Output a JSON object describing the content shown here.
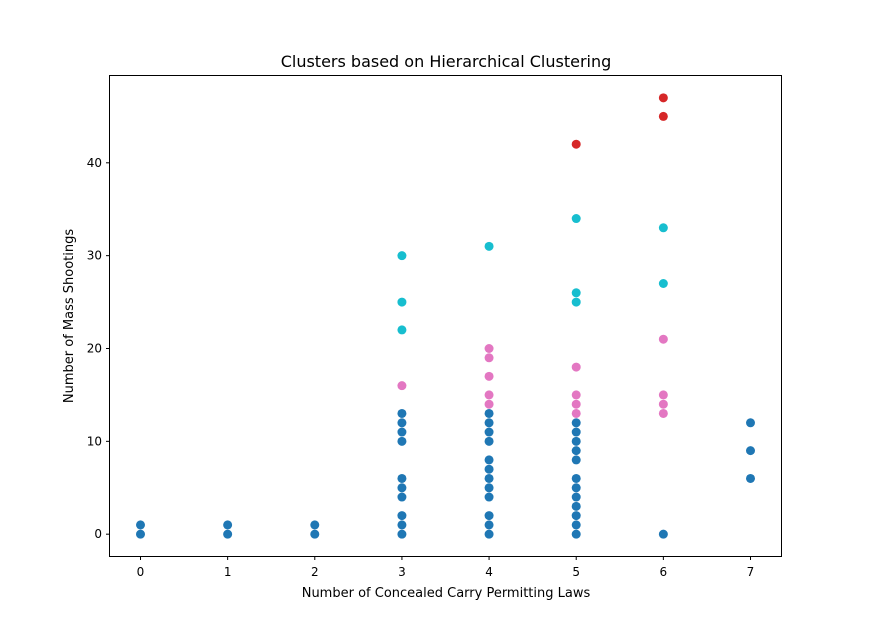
{
  "chart_data": {
    "type": "scatter",
    "title": "Clusters based on Hierarchical Clustering",
    "xlabel": "Number of Concealed Carry Permitting Laws",
    "ylabel": "Number of Mass Shootings",
    "xlim": [
      -0.35,
      7.35
    ],
    "ylim": [
      -2.35,
      49.35
    ],
    "xticks": [
      0,
      1,
      2,
      3,
      4,
      5,
      6,
      7
    ],
    "yticks": [
      0,
      10,
      20,
      30,
      40
    ],
    "grid": false,
    "legend": "none",
    "series": [
      {
        "color": "#1f77b4",
        "points": [
          [
            0,
            0
          ],
          [
            0,
            1
          ],
          [
            1,
            0
          ],
          [
            1,
            1
          ],
          [
            2,
            0
          ],
          [
            2,
            1
          ],
          [
            3,
            0
          ],
          [
            3,
            1
          ],
          [
            3,
            2
          ],
          [
            3,
            4
          ],
          [
            3,
            5
          ],
          [
            3,
            6
          ],
          [
            3,
            10
          ],
          [
            3,
            11
          ],
          [
            3,
            12
          ],
          [
            3,
            13
          ],
          [
            4,
            0
          ],
          [
            4,
            1
          ],
          [
            4,
            2
          ],
          [
            4,
            4
          ],
          [
            4,
            5
          ],
          [
            4,
            6
          ],
          [
            4,
            7
          ],
          [
            4,
            8
          ],
          [
            4,
            10
          ],
          [
            4,
            11
          ],
          [
            4,
            12
          ],
          [
            4,
            13
          ],
          [
            5,
            0
          ],
          [
            5,
            1
          ],
          [
            5,
            2
          ],
          [
            5,
            3
          ],
          [
            5,
            4
          ],
          [
            5,
            5
          ],
          [
            5,
            6
          ],
          [
            5,
            8
          ],
          [
            5,
            9
          ],
          [
            5,
            10
          ],
          [
            5,
            11
          ],
          [
            5,
            12
          ],
          [
            6,
            0
          ],
          [
            7,
            6
          ],
          [
            7,
            9
          ],
          [
            7,
            12
          ]
        ]
      },
      {
        "color": "#e377c2",
        "points": [
          [
            3,
            16
          ],
          [
            4,
            14
          ],
          [
            4,
            15
          ],
          [
            4,
            17
          ],
          [
            4,
            19
          ],
          [
            4,
            20
          ],
          [
            5,
            13
          ],
          [
            5,
            14
          ],
          [
            5,
            15
          ],
          [
            5,
            18
          ],
          [
            6,
            13
          ],
          [
            6,
            14
          ],
          [
            6,
            15
          ],
          [
            6,
            21
          ]
        ]
      },
      {
        "color": "#17becf",
        "points": [
          [
            3,
            22
          ],
          [
            3,
            25
          ],
          [
            3,
            30
          ],
          [
            4,
            31
          ],
          [
            5,
            25
          ],
          [
            5,
            26
          ],
          [
            5,
            34
          ],
          [
            6,
            27
          ],
          [
            6,
            33
          ]
        ]
      },
      {
        "color": "#d62728",
        "points": [
          [
            5,
            42
          ],
          [
            6,
            45
          ],
          [
            6,
            47
          ]
        ]
      }
    ]
  }
}
